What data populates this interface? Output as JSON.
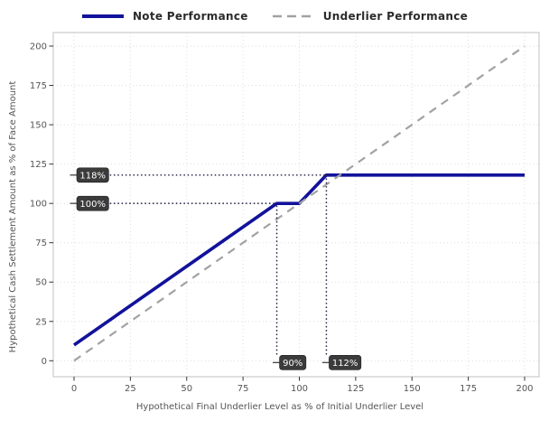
{
  "legend": {
    "items": [
      {
        "label": "Note Performance",
        "swatch": "solid-navy-line"
      },
      {
        "label": "Underlier Performance",
        "swatch": "dashed-gray-line"
      }
    ]
  },
  "chart_data": {
    "type": "line",
    "title": "",
    "xlabel": "Hypothetical Final Underlier Level as % of Initial Underlier Level",
    "ylabel": "Hypothetical Cash Settlement Amount as % of Face Amount",
    "xlim": [
      0,
      200
    ],
    "ylim": [
      0,
      200
    ],
    "x_ticks": [
      0,
      25,
      50,
      75,
      100,
      125,
      150,
      175,
      200
    ],
    "y_ticks": [
      0,
      25,
      50,
      75,
      100,
      125,
      150,
      175,
      200
    ],
    "grid": true,
    "legend_position": "top",
    "series": [
      {
        "name": "Note Performance",
        "color": "#12129B",
        "style": "solid",
        "width": 3.6,
        "points": [
          [
            0,
            10
          ],
          [
            90,
            100
          ],
          [
            100,
            100
          ],
          [
            112,
            118
          ],
          [
            200,
            118
          ]
        ]
      },
      {
        "name": "Underlier Performance",
        "color": "#A2A2A2",
        "style": "dashed",
        "width": 2.2,
        "points": [
          [
            0,
            0
          ],
          [
            200,
            200
          ]
        ]
      }
    ],
    "annotations": [
      {
        "label": "118%",
        "axis": "y",
        "value": 118,
        "guide_to": 112
      },
      {
        "label": "100%",
        "axis": "y",
        "value": 100,
        "guide_to": 90
      },
      {
        "label": "90%",
        "axis": "x",
        "value": 90,
        "guide_to": 100
      },
      {
        "label": "112%",
        "axis": "x",
        "value": 112,
        "guide_to": 118
      }
    ],
    "colors": {
      "note_line": "#12129B",
      "underlier_line": "#A2A2A2",
      "grid": "#DEDEDE",
      "panel_border": "#CBCBCB",
      "tick_mark": "#333333",
      "tick_text": "#555555",
      "axis_title_text": "#555555",
      "legend_text": "#2B2B2B",
      "annotation_bg": "#3B3B3B",
      "annotation_text": "#FFFFFF",
      "guide_dots": "#24244A"
    }
  }
}
